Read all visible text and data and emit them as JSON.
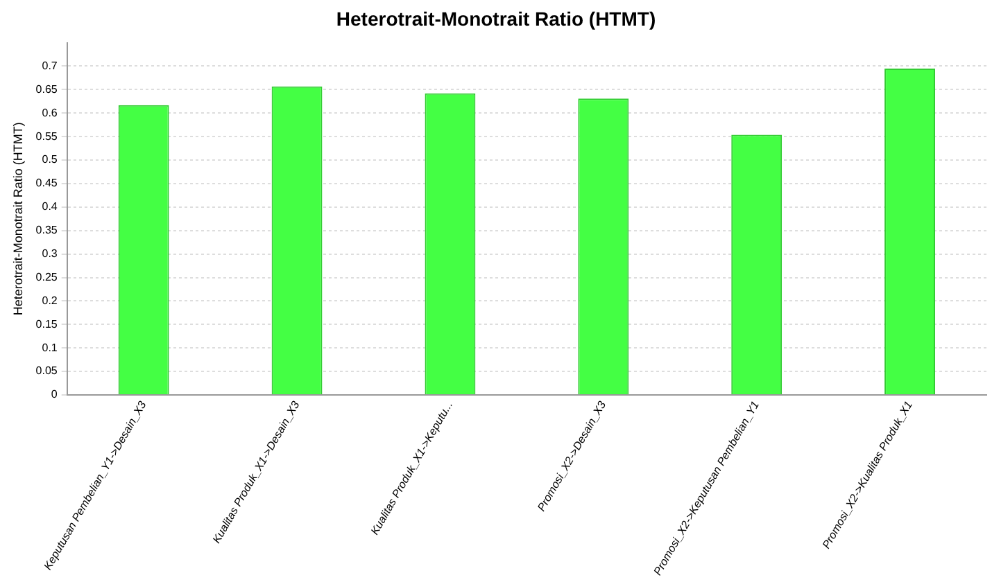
{
  "chart_data": {
    "type": "bar",
    "title": "Heterotrait-Monotrait Ratio (HTMT)",
    "ylabel": "Heterotrait-Monotrait Ratio (HTMT)",
    "categories": [
      "Keputusan Pembelian_Y1->Desain_X3",
      "Kualitas Produk_X1->Desain_X3",
      "Kualitas Produk_X1->Keputu...",
      "Promosi_X2->Desain_X3",
      "Promosi_X2->Keputusan Pembelian_Y1",
      "Promosi_X2->Kualitas Produk_X1"
    ],
    "values": [
      0.617,
      0.657,
      0.642,
      0.631,
      0.554,
      0.695
    ],
    "color": "#44ff44",
    "ylim": [
      0,
      0.75
    ],
    "yticks": [
      0,
      0.05,
      0.1,
      0.15,
      0.2,
      0.25,
      0.3,
      0.35,
      0.4,
      0.45,
      0.5,
      0.55,
      0.6,
      0.65,
      0.7
    ],
    "grid": "y",
    "legend": false
  }
}
